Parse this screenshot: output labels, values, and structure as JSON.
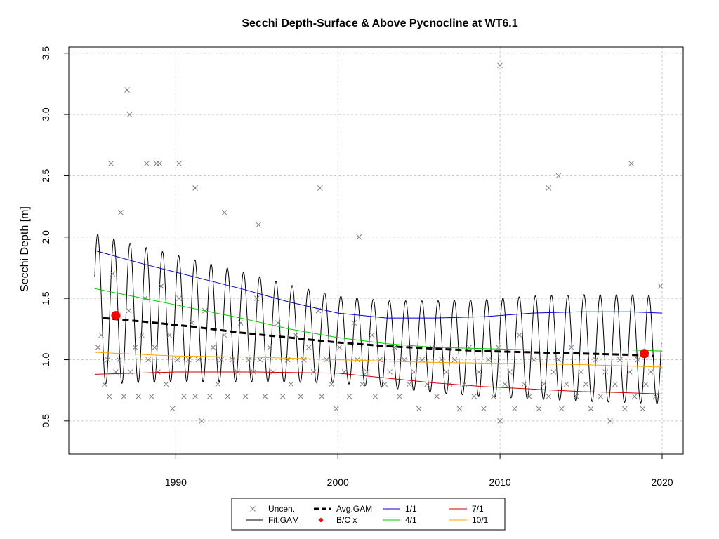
{
  "chart_data": {
    "type": "scatter",
    "title": "Secchi Depth-Surface & Above Pycnocline at WT6.1",
    "xlabel": "",
    "ylabel": "Secchi Depth [m]",
    "xlim": [
      1983.4,
      2021.3
    ],
    "ylim": [
      0.23,
      3.55
    ],
    "x_ticks": [
      1990,
      2000,
      2010,
      2020
    ],
    "y_ticks": [
      0.5,
      1.0,
      1.5,
      2.0,
      2.5,
      3.0,
      3.5
    ],
    "grid": true,
    "legend_position": "bottom",
    "legend": [
      {
        "label": "Uncen.",
        "kind": "cross",
        "color": "#7f7f7f"
      },
      {
        "label": "Fit.GAM",
        "kind": "line",
        "color": "#000000"
      },
      {
        "label": "Avg.GAM",
        "kind": "dashed",
        "color": "#000000"
      },
      {
        "label": "B/C x",
        "kind": "diamond",
        "color": "#ff0000"
      },
      {
        "label": "1/1",
        "kind": "line",
        "color": "#0000cd"
      },
      {
        "label": "4/1",
        "kind": "line",
        "color": "#00cd00"
      },
      {
        "label": "7/1",
        "kind": "line",
        "color": "#cd0000"
      },
      {
        "label": "10/1",
        "kind": "line",
        "color": "#ffa500"
      }
    ],
    "series": [
      {
        "name": "Uncen.",
        "type": "scatter",
        "color": "#7f7f7f",
        "x": [
          1985.2,
          1985.4,
          1985.6,
          1985.8,
          1985.9,
          1986.1,
          1986.3,
          1986.5,
          1986.8,
          1987.1,
          1987.2,
          1987.5,
          1987.7,
          1987.9,
          1988.1,
          1988.3,
          1988.5,
          1988.7,
          1988.9,
          1989.1,
          1989.4,
          1989.6,
          1989.8,
          1990.1,
          1990.2,
          1990.5,
          1990.8,
          1991.0,
          1991.2,
          1991.4,
          1991.6,
          1991.8,
          1992.1,
          1992.3,
          1992.6,
          1992.8,
          1993.0,
          1993.2,
          1993.5,
          1993.8,
          1994.0,
          1994.3,
          1994.5,
          1994.8,
          1995.0,
          1995.2,
          1995.5,
          1995.8,
          1996.0,
          1996.3,
          1996.6,
          1996.9,
          1997.1,
          1997.4,
          1997.7,
          1997.9,
          1998.2,
          1998.5,
          1998.8,
          1999.0,
          1999.3,
          1999.6,
          1999.9,
          2000.1,
          2000.4,
          2000.7,
          2001.0,
          2001.2,
          2001.5,
          2001.8,
          2002.1,
          2002.3,
          2002.6,
          2002.9,
          2003.2,
          2003.5,
          2003.8,
          2004.1,
          2004.4,
          2004.7,
          2005.0,
          2005.2,
          2005.5,
          2005.8,
          2006.1,
          2006.4,
          2006.7,
          2006.9,
          2007.2,
          2007.5,
          2007.8,
          2008.1,
          2008.4,
          2008.7,
          2009.0,
          2009.3,
          2009.6,
          2009.9,
          2010.0,
          2010.3,
          2010.6,
          2010.9,
          2011.2,
          2011.5,
          2011.8,
          2012.1,
          2012.4,
          2012.7,
          2013.0,
          2013.3,
          2013.6,
          2013.8,
          2014.1,
          2014.4,
          2014.7,
          2015.0,
          2015.3,
          2015.6,
          2015.9,
          2016.2,
          2016.5,
          2016.8,
          2017.1,
          2017.4,
          2017.7,
          2018.0,
          2018.3,
          2018.5,
          2018.8,
          2019.0,
          2019.3,
          2019.6,
          2019.9,
          1987.0,
          1987.15,
          1986.0,
          1989.0,
          1990.2,
          1991.2,
          1998.9,
          2001.3,
          2010.0,
          2013.0,
          2013.6,
          2018.1,
          1993.0,
          1995.1,
          1986.6,
          1988.2,
          1988.8
        ],
        "y": [
          1.1,
          1.2,
          0.8,
          1.0,
          0.7,
          1.7,
          0.9,
          1.0,
          0.7,
          1.4,
          0.9,
          1.1,
          0.7,
          1.2,
          1.5,
          1.0,
          0.7,
          1.1,
          0.9,
          1.6,
          0.8,
          1.2,
          0.6,
          1.0,
          1.5,
          0.7,
          1.0,
          1.3,
          0.7,
          1.0,
          0.5,
          1.4,
          0.7,
          1.1,
          0.8,
          1.0,
          1.2,
          0.7,
          1.0,
          0.9,
          1.3,
          0.7,
          1.0,
          0.9,
          1.5,
          1.0,
          0.7,
          1.1,
          0.9,
          1.3,
          0.7,
          1.0,
          0.8,
          1.2,
          0.7,
          1.0,
          1.1,
          0.9,
          1.4,
          0.7,
          1.0,
          0.8,
          0.6,
          1.1,
          0.9,
          0.7,
          1.3,
          1.0,
          0.8,
          0.9,
          1.2,
          0.7,
          1.0,
          0.8,
          0.9,
          1.1,
          0.7,
          1.0,
          0.8,
          0.9,
          0.6,
          1.0,
          0.8,
          1.1,
          0.7,
          1.0,
          0.9,
          0.8,
          1.0,
          0.6,
          0.8,
          1.1,
          0.7,
          0.9,
          0.6,
          1.0,
          0.7,
          1.1,
          0.5,
          0.8,
          0.9,
          0.6,
          1.2,
          0.8,
          0.7,
          1.0,
          0.6,
          0.8,
          0.7,
          0.9,
          1.0,
          0.6,
          0.8,
          1.1,
          0.7,
          0.9,
          0.8,
          0.6,
          1.0,
          0.7,
          0.9,
          0.5,
          0.8,
          1.0,
          0.6,
          0.9,
          0.7,
          1.0,
          0.6,
          0.8,
          0.9,
          0.7,
          1.6,
          3.2,
          3.0,
          2.6,
          2.6,
          2.6,
          2.4,
          2.4,
          2.0,
          3.4,
          2.4,
          2.5,
          2.6,
          2.2,
          2.1,
          2.2,
          2.6,
          2.6
        ]
      },
      {
        "name": "1/1",
        "type": "line",
        "color": "#0000cd",
        "x": [
          1985,
          1988,
          1991,
          1994,
          1997,
          2000,
          2003,
          2006,
          2009,
          2012,
          2015,
          2018,
          2020
        ],
        "y": [
          1.89,
          1.78,
          1.68,
          1.58,
          1.47,
          1.38,
          1.34,
          1.34,
          1.35,
          1.38,
          1.39,
          1.39,
          1.38
        ]
      },
      {
        "name": "4/1",
        "type": "line",
        "color": "#00cd00",
        "x": [
          1985,
          1988,
          1991,
          1994,
          1997,
          2000,
          2003,
          2006,
          2009,
          2012,
          2015,
          2018,
          2020
        ],
        "y": [
          1.58,
          1.5,
          1.42,
          1.34,
          1.25,
          1.18,
          1.13,
          1.1,
          1.09,
          1.08,
          1.08,
          1.08,
          1.07
        ]
      },
      {
        "name": "Avg.GAM",
        "type": "line",
        "color": "#000000",
        "x": [
          1985.5,
          1988,
          1991,
          1994,
          1997,
          2000,
          2003,
          2006,
          2009,
          2012,
          2015,
          2018,
          2019.5
        ],
        "y": [
          1.34,
          1.31,
          1.27,
          1.22,
          1.18,
          1.14,
          1.11,
          1.09,
          1.07,
          1.06,
          1.05,
          1.04,
          1.03
        ]
      },
      {
        "name": "10/1",
        "type": "line",
        "color": "#ffa500",
        "x": [
          1985,
          1990,
          1995,
          2000,
          2005,
          2010,
          2015,
          2020
        ],
        "y": [
          1.06,
          1.03,
          1.02,
          1.0,
          0.98,
          0.97,
          0.96,
          0.94
        ]
      },
      {
        "name": "7/1",
        "type": "line",
        "color": "#cd0000",
        "x": [
          1985,
          1990,
          1995,
          2000,
          2003,
          2006,
          2009,
          2012,
          2015,
          2018,
          2020
        ],
        "y": [
          0.88,
          0.9,
          0.9,
          0.89,
          0.85,
          0.81,
          0.78,
          0.76,
          0.74,
          0.73,
          0.72
        ]
      },
      {
        "name": "B/C x",
        "type": "scatter",
        "color": "#ff0000",
        "x": [
          1986.3,
          2018.9
        ],
        "y": [
          1.36,
          1.05
        ]
      }
    ]
  }
}
